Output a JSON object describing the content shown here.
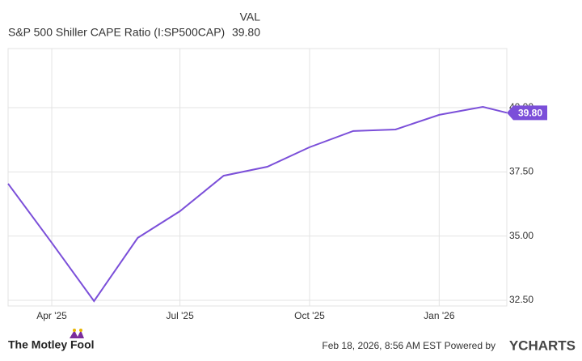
{
  "chart_data": {
    "type": "line",
    "header": {
      "column_label": "VAL",
      "value": "39.80"
    },
    "x": [
      "2025-03",
      "2025-04",
      "2025-05",
      "2025-06",
      "2025-07",
      "2025-08",
      "2025-09",
      "2025-10",
      "2025-11",
      "2025-12",
      "2026-01",
      "2026-02",
      "2026-02-18"
    ],
    "series": [
      {
        "name": "S&P 500 Shiller CAPE Ratio (I:SP500CAP)",
        "color": "#7b4fd9",
        "values": [
          37.04,
          34.74,
          32.47,
          34.93,
          35.97,
          37.35,
          37.7,
          38.46,
          39.09,
          39.15,
          39.72,
          40.03,
          39.8
        ],
        "value_labels": [
          null,
          null,
          null,
          null,
          null,
          null,
          null,
          null,
          null,
          null,
          null,
          null,
          "39.80"
        ]
      }
    ],
    "xlim": [
      "2025-03",
      "2026-02-18"
    ],
    "xticks": [
      {
        "value": "2025-04",
        "label": "Apr '25"
      },
      {
        "value": "2025-07",
        "label": "Jul '25"
      },
      {
        "value": "2025-10",
        "label": "Oct '25"
      },
      {
        "value": "2026-01",
        "label": "Jan '26"
      }
    ],
    "ylim": [
      32.28,
      42.3
    ],
    "yticks": [
      {
        "value": 32.5,
        "label": "32.50"
      },
      {
        "value": 35,
        "label": "35.00"
      },
      {
        "value": 37.5,
        "label": "37.50"
      },
      {
        "value": 40,
        "label": "40.00"
      }
    ],
    "grid": true,
    "footer": {
      "brand": "The Motley Fool",
      "timestamp": "Feb 18, 2026, 8:56 AM EST Powered by",
      "source": "YCHARTS"
    }
  }
}
